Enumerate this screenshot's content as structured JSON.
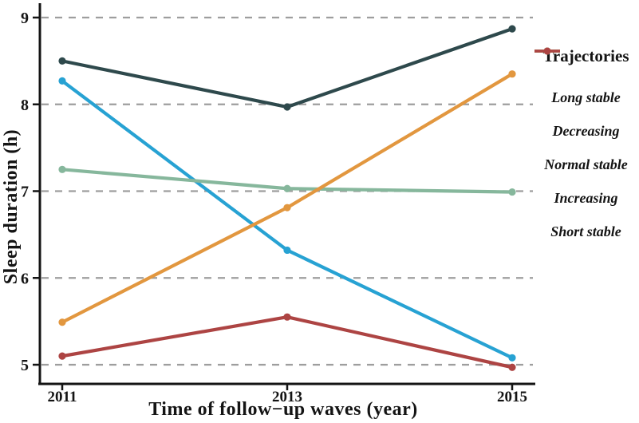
{
  "chart_data": {
    "type": "line",
    "title": "",
    "xlabel": "Time of follow−up waves (year)",
    "ylabel": "Sleep duration (h)",
    "x": [
      2011,
      2013,
      2015
    ],
    "x_tick_labels": [
      "2011",
      "2013",
      "2015"
    ],
    "y_ticks": [
      5,
      6,
      7,
      8,
      9
    ],
    "y_tick_labels": [
      "5",
      "6",
      "7",
      "8",
      "9"
    ],
    "ylim": [
      4.75,
      9.15
    ],
    "grid": "horizontal-dashed",
    "legend_title": "Trajectories",
    "legend_position": "right",
    "series": [
      {
        "name": "Long stable",
        "color": "#2e494c",
        "values": [
          8.5,
          7.97,
          8.87
        ]
      },
      {
        "name": "Decreasing",
        "color": "#27a2d3",
        "values": [
          8.27,
          6.32,
          5.08
        ]
      },
      {
        "name": "Normal stable",
        "color": "#86b79c",
        "values": [
          7.25,
          7.03,
          6.99
        ]
      },
      {
        "name": "Increasing",
        "color": "#e2973f",
        "values": [
          5.49,
          6.81,
          8.35
        ]
      },
      {
        "name": "Short stable",
        "color": "#ad4443",
        "values": [
          5.1,
          5.55,
          4.97
        ]
      }
    ],
    "colors": {
      "grid": "#9e9e9e",
      "axis": "#141414",
      "text": "#141414"
    }
  }
}
